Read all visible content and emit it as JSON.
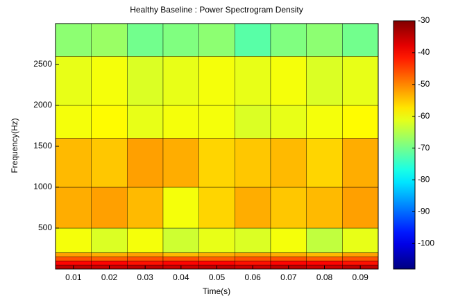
{
  "chart_data": {
    "type": "contour",
    "title": "Healthy Baseline : Power Spectrogram Density",
    "x_label": "Time(s)",
    "y_label": "Frequency(Hz)",
    "xlim": [
      0.005,
      0.095
    ],
    "xticks": [
      0.01,
      0.02,
      0.03,
      0.04,
      0.05,
      0.06,
      0.07,
      0.08,
      0.09
    ],
    "ylim": [
      0,
      3000
    ],
    "yticks": [
      500,
      1000,
      1500,
      2000,
      2500
    ],
    "x_edges": [
      0.005,
      0.015,
      0.025,
      0.035,
      0.045,
      0.055,
      0.065,
      0.075,
      0.085,
      0.095
    ],
    "y_edges": [
      0,
      50,
      100,
      150,
      200,
      500,
      1000,
      1600,
      2000,
      2600,
      3000
    ],
    "z": [
      [
        -35,
        -36,
        -35,
        -36,
        -35,
        -36,
        -35,
        -36,
        -35
      ],
      [
        -40,
        -40,
        -41,
        -40,
        -40,
        -41,
        -40,
        -40,
        -41
      ],
      [
        -46,
        -47,
        -46,
        -46,
        -47,
        -46,
        -46,
        -47,
        -46
      ],
      [
        -52,
        -53,
        -52,
        -54,
        -53,
        -52,
        -53,
        -54,
        -52
      ],
      [
        -60,
        -62,
        -60,
        -63,
        -61,
        -62,
        -60,
        -64,
        -61
      ],
      [
        -53,
        -52,
        -54,
        -60,
        -56,
        -53,
        -55,
        -54,
        -52
      ],
      [
        -54,
        -55,
        -52,
        -53,
        -56,
        -55,
        -54,
        -56,
        -53
      ],
      [
        -60,
        -59,
        -61,
        -60,
        -60,
        -62,
        -61,
        -60,
        -59
      ],
      [
        -61,
        -60,
        -62,
        -61,
        -60,
        -61,
        -60,
        -62,
        -61
      ],
      [
        -68,
        -67,
        -70,
        -69,
        -68,
        -72,
        -69,
        -68,
        -70
      ]
    ],
    "clim": [
      -108,
      -30
    ],
    "cticks": [
      -30,
      -40,
      -50,
      -60,
      -70,
      -80,
      -90,
      -100
    ],
    "colormap": "jet"
  }
}
